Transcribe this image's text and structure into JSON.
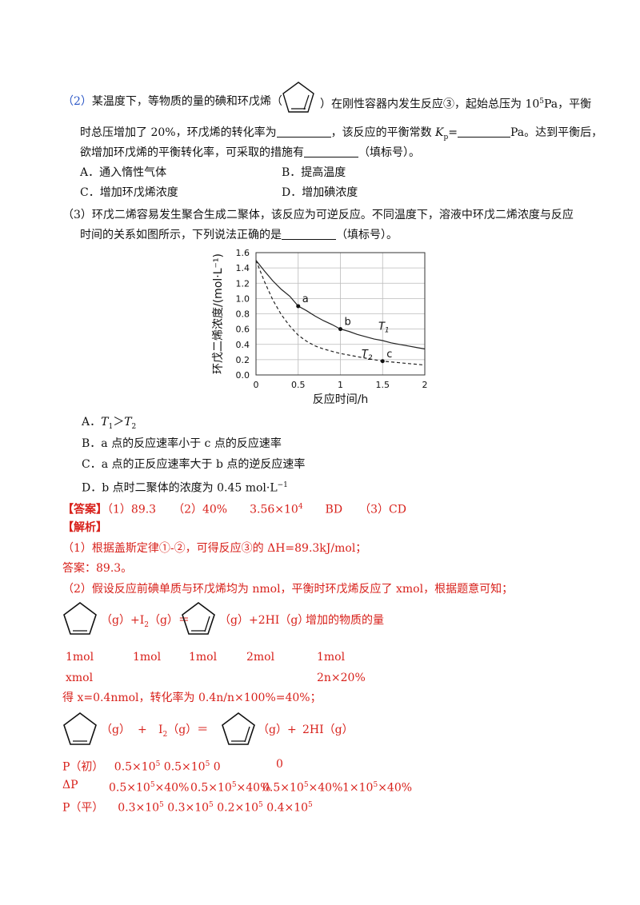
{
  "q2": {
    "num": "（2）",
    "l1a": "某温度下，等物质的量的碘和环戊烯（",
    "l1b": "）在刚性容器内发生反应③，起始总压为 10",
    "exp5": "5",
    "l1c": "Pa，平衡",
    "l2a": "时总压增加了 20%，环戊烯的转化率为",
    "l2b": "，该反应的平衡常数 ",
    "kp": "K",
    "kp_sub": "p",
    "l2c": "=",
    "l2d": "Pa。达到平衡后，",
    "l3a": "欲增加环戊烯的平衡转化率，可采取的措施有",
    "l3b": "（填标号）。",
    "optA": "A．通入惰性气体",
    "optB": "B．提高温度",
    "optC": "C．增加环戊烯浓度",
    "optD": "D．增加碘浓度"
  },
  "q3": {
    "l1": "（3）环戊二烯容易发生聚合生成二聚体，该反应为可逆反应。不同温度下，溶液中环戊二烯浓度与反应",
    "l2a": "时间的关系如图所示，下列说法正确的是",
    "l2b": "（填标号）。",
    "optA_pre": "A．",
    "optA_t1": "T",
    "optA_s1": "1",
    "optA_gt": "＞",
    "optA_t2": "T",
    "optA_s2": "2",
    "optB": "B．a 点的反应速率小于 c 点的反应速率",
    "optC": "C．a 点的正反应速率大于 b 点的逆反应速率",
    "optD_a": "D．b 点时二聚体的浓度为 0.45 mol·L",
    "optD_exp": "−1"
  },
  "chart_data": {
    "type": "line",
    "xlabel": "反应时间/h",
    "ylabel": "环戊二烯浓度/(mol·L⁻¹)",
    "xlim": [
      0,
      2
    ],
    "ylim": [
      0,
      1.6
    ],
    "xticks": [
      "0",
      "0.5",
      "1",
      "1.5",
      "2"
    ],
    "yticks": [
      "0.0",
      "0.2",
      "0.4",
      "0.6",
      "0.8",
      "1.0",
      "1.2",
      "1.4",
      "1.6"
    ],
    "grid": true,
    "series": [
      {
        "name": "T1",
        "style": "solid",
        "x": [
          0,
          0.1,
          0.2,
          0.3,
          0.4,
          0.5,
          0.6,
          0.7,
          0.8,
          0.9,
          1.0,
          1.1,
          1.2,
          1.3,
          1.4,
          1.5,
          1.6,
          1.7,
          1.8,
          1.9,
          2.0
        ],
        "y": [
          1.5,
          1.36,
          1.23,
          1.12,
          1.03,
          0.9,
          0.84,
          0.77,
          0.71,
          0.66,
          0.6,
          0.57,
          0.53,
          0.5,
          0.47,
          0.45,
          0.42,
          0.4,
          0.38,
          0.36,
          0.34
        ]
      },
      {
        "name": "T2",
        "style": "dashed",
        "x": [
          0,
          0.1,
          0.2,
          0.3,
          0.4,
          0.5,
          0.6,
          0.7,
          0.8,
          0.9,
          1.0,
          1.1,
          1.2,
          1.3,
          1.4,
          1.5,
          1.6,
          1.7,
          1.8,
          1.9,
          2.0
        ],
        "y": [
          1.5,
          1.22,
          0.98,
          0.79,
          0.64,
          0.52,
          0.44,
          0.38,
          0.34,
          0.31,
          0.28,
          0.26,
          0.24,
          0.22,
          0.2,
          0.18,
          0.17,
          0.16,
          0.15,
          0.14,
          0.13
        ]
      }
    ],
    "points": [
      {
        "label": "a",
        "x": 0.5,
        "y": 0.9
      },
      {
        "label": "b",
        "x": 1.0,
        "y": 0.6
      },
      {
        "label": "c",
        "x": 1.5,
        "y": 0.18
      }
    ],
    "curve_labels": [
      {
        "t": "T",
        "s": "1",
        "x": 1.45,
        "y": 0.59
      },
      {
        "t": "T",
        "s": "2",
        "x": 1.25,
        "y": 0.23
      }
    ]
  },
  "answer": {
    "tag": "【答案】",
    "text": "（1）89.3　　（2）40%　　3.56×10",
    "exp": "4",
    "text2": "　　BD　　（3）CD"
  },
  "analysis": {
    "tag": "【解析】",
    "p1": "（1）根据盖斯定律①-②，可得反应③的 ΔH=89.3kJ/mol；",
    "p2": "答案：89.3。",
    "p3": "（2）假设反应前碘单质与环戊烯均为 nmol，平衡时环戊烯反应了 xmol，根据题意可知；",
    "eq1": {
      "g1": "（g）+I",
      "i2": "2",
      "g2": "（g）＝",
      "g3": "（g）+2HI（g）",
      "inc": "增加的物质的量"
    },
    "mol_row": [
      "1mol",
      "1mol",
      "1mol",
      "2mol",
      "1mol"
    ],
    "x_row_left": "xmol",
    "x_row_right": "2n×20%",
    "p4": "得 x=0.4nmol，转化率为 0.4n/n×100%=40%；",
    "eq2": {
      "g1": "（g）",
      "plus1": "+",
      "i2": "I",
      "i2s": "2",
      "g2": "（g）＝",
      "g3": "（g）+",
      "hi": "2HI（g）"
    },
    "p_init_label": "P（初）",
    "p_init": [
      "0.5×10",
      "0.5×10",
      "0",
      "0"
    ],
    "dp_label": "ΔP",
    "dp": [
      "0.5×10",
      "×40%",
      "0.5×10",
      "×40%",
      "0.5×10",
      "×40%",
      "1×10",
      "×40%"
    ],
    "p_eq_label": "P（平）",
    "p_eq": [
      "0.3×10",
      "0.3×10",
      "0.2×10",
      "0.4×10"
    ],
    "exp5": "5"
  }
}
